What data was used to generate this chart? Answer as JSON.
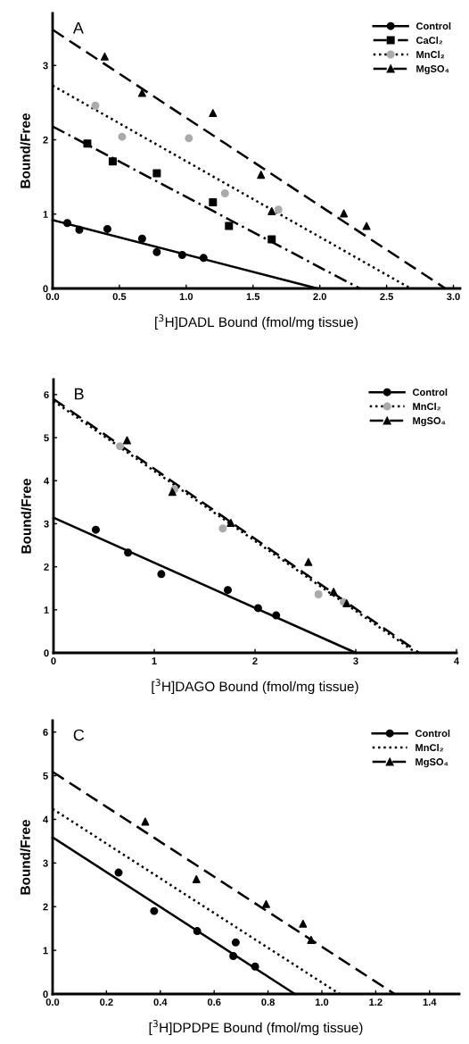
{
  "chart_data": [
    {
      "type": "scatter",
      "title": "A",
      "xlabel": "[$^{3}$H]DADL Bound (fmol/mg tissue)",
      "ylabel": "Bound/Free",
      "xlim": [
        0,
        3.05
      ],
      "ylim": [
        0,
        3.7
      ],
      "xticks": [
        {
          "value": 0,
          "label": "0.0"
        },
        {
          "value": 0.5,
          "label": "0.5"
        },
        {
          "value": 1,
          "label": "1.0"
        },
        {
          "value": 1.5,
          "label": "1.5"
        },
        {
          "value": 2,
          "label": "2.0"
        },
        {
          "value": 2.5,
          "label": "2.5"
        },
        {
          "value": 3,
          "label": "3.0"
        }
      ],
      "yticks": [
        0,
        1,
        2,
        3
      ],
      "legend": "top right",
      "series": [
        {
          "type": "line",
          "color": "#000000",
          "line_style": "solid",
          "x": [
            0,
            1.98
          ],
          "values": [
            0.92,
            0
          ]
        },
        {
          "name": "Control",
          "color": "#000000",
          "marker": "circle",
          "line_style": "solid",
          "x": [
            0.11,
            0.2,
            0.41,
            0.67,
            0.78,
            0.97,
            1.13
          ],
          "values": [
            0.88,
            0.79,
            0.8,
            0.67,
            0.49,
            0.45,
            0.41
          ]
        },
        {
          "type": "line",
          "color": "#000000",
          "line_style": "dashdot",
          "x": [
            0,
            2.3
          ],
          "values": [
            2.18,
            0
          ]
        },
        {
          "name": "CaCl₂",
          "color": "#000000",
          "marker": "square",
          "line_style": "dashdot",
          "x": [
            0.26,
            0.45,
            0.78,
            1.2,
            1.32,
            1.64
          ],
          "values": [
            1.95,
            1.71,
            1.55,
            1.16,
            0.84,
            0.66
          ]
        },
        {
          "type": "line",
          "color": "#000000",
          "line_style": "dotted",
          "x": [
            0,
            2.68
          ],
          "values": [
            2.73,
            0
          ]
        },
        {
          "name": "MnCl₂",
          "color": "#aaaaaa",
          "marker": "circle",
          "line_style": "dotted",
          "x": [
            0.32,
            0.52,
            1.02,
            1.29,
            1.69
          ],
          "values": [
            2.46,
            2.04,
            2.02,
            1.28,
            1.06
          ]
        },
        {
          "type": "line",
          "color": "#000000",
          "line_style": "dashed",
          "x": [
            0,
            2.94
          ],
          "values": [
            3.48,
            0
          ]
        },
        {
          "name": "MgSO₄",
          "color": "#000000",
          "marker": "triangle",
          "line_style": "dashed",
          "x": [
            0.39,
            0.67,
            1.2,
            1.56,
            1.64,
            2.18,
            2.35
          ],
          "values": [
            3.12,
            2.63,
            2.36,
            1.53,
            1.04,
            1.01,
            0.84
          ]
        }
      ]
    },
    {
      "type": "scatter",
      "title": "B",
      "xlabel": "[$^{3}$H]DAGO Bound (fmol/mg tissue)",
      "ylabel": "Bound/Free",
      "xlim": [
        0,
        4
      ],
      "ylim": [
        0,
        6.35
      ],
      "xticks": [
        0,
        1,
        2,
        3,
        4
      ],
      "yticks": [
        0,
        1,
        2,
        3,
        4,
        5,
        6
      ],
      "legend": "top right",
      "series": [
        {
          "type": "line",
          "color": "#000000",
          "line_style": "solid",
          "x": [
            0,
            3.0
          ],
          "values": [
            3.14,
            0
          ]
        },
        {
          "name": "Control",
          "color": "#000000",
          "marker": "circle",
          "line_style": "solid",
          "x": [
            0.42,
            0.74,
            1.07,
            1.73,
            2.03,
            2.21
          ],
          "values": [
            2.86,
            2.33,
            1.83,
            1.46,
            1.04,
            0.87
          ]
        },
        {
          "type": "line",
          "color": "#000000",
          "line_style": "dotted",
          "x": [
            0,
            3.6
          ],
          "values": [
            5.85,
            0
          ]
        },
        {
          "name": "MnCl₂",
          "color": "#aaaaaa",
          "marker": "circle",
          "line_style": "dotted",
          "x": [
            0.66,
            1.2,
            1.68,
            2.63,
            2.88
          ],
          "values": [
            4.8,
            3.8,
            2.89,
            1.36,
            1.18
          ]
        },
        {
          "type": "line",
          "color": "#000000",
          "line_style": "dashed",
          "x": [
            0,
            3.63
          ],
          "values": [
            5.9,
            0
          ]
        },
        {
          "name": "MgSO₄",
          "color": "#000000",
          "marker": "triangle",
          "line_style": "dashed",
          "x": [
            0.73,
            1.18,
            1.76,
            2.53,
            2.78,
            2.91
          ],
          "values": [
            4.94,
            3.74,
            3.02,
            2.11,
            1.42,
            1.15
          ]
        }
      ]
    },
    {
      "type": "scatter",
      "title": "C",
      "xlabel": "[$^{3}$H]DPDPE Bound (fmol/mg tissue)",
      "ylabel": "Bound/Free",
      "xlim": [
        0,
        1.51
      ],
      "ylim": [
        0,
        6.26
      ],
      "xticks": [
        {
          "value": 0,
          "label": "0.0"
        },
        {
          "value": 0.2,
          "label": "0.2"
        },
        {
          "value": 0.4,
          "label": "0.4"
        },
        {
          "value": 0.6,
          "label": "0.6"
        },
        {
          "value": 0.8,
          "label": "0.8"
        },
        {
          "value": 1.0,
          "label": "1.0"
        },
        {
          "value": 1.2,
          "label": "1.2"
        },
        {
          "value": 1.4,
          "label": "1.4"
        }
      ],
      "yticks": [
        0,
        1,
        2,
        3,
        4,
        5,
        6
      ],
      "legend": "top right",
      "series": [
        {
          "type": "line",
          "color": "#000000",
          "line_style": "solid",
          "x": [
            0,
            0.9
          ],
          "values": [
            3.59,
            0
          ]
        },
        {
          "name": "Control",
          "color": "#000000",
          "marker": "circle",
          "line_style": "solid",
          "x": [
            0.245,
            0.377,
            0.537,
            0.68,
            0.671,
            0.752
          ],
          "values": [
            2.78,
            1.9,
            1.44,
            1.18,
            0.87,
            0.63
          ]
        },
        {
          "type": "line",
          "name": "MnCl₂",
          "color": "#000000",
          "line_style": "dotted",
          "x": [
            0,
            1.066
          ],
          "values": [
            4.24,
            0
          ]
        },
        {
          "type": "line",
          "color": "#000000",
          "line_style": "dashed",
          "x": [
            0,
            1.27
          ],
          "values": [
            5.09,
            0
          ]
        },
        {
          "name": "MgSO₄",
          "color": "#000000",
          "marker": "triangle",
          "line_style": "dashed",
          "x": [
            0.344,
            0.534,
            0.793,
            0.93,
            0.96
          ],
          "values": [
            3.95,
            2.63,
            2.06,
            1.61,
            1.24
          ]
        }
      ]
    }
  ]
}
